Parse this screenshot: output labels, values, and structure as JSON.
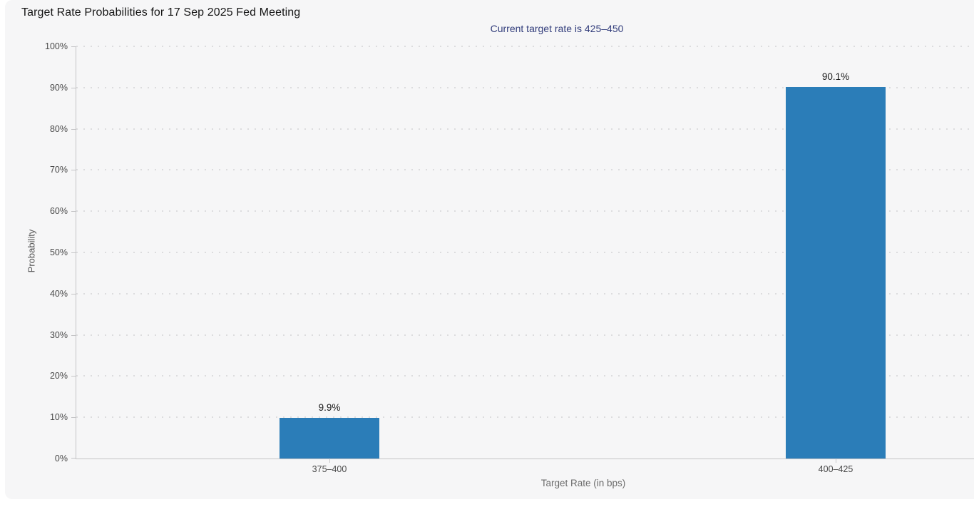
{
  "chart_data": {
    "type": "bar",
    "title": "Target Rate Probabilities for 17 Sep 2025 Fed Meeting",
    "subtitle": "Current target rate is 425–450",
    "categories": [
      "375–400",
      "400–425"
    ],
    "values": [
      9.9,
      90.1
    ],
    "data_labels": [
      "9.9%",
      "90.1%"
    ],
    "xlabel": "Target Rate (in bps)",
    "ylabel": "Probability",
    "ylim": [
      0,
      100
    ],
    "ytick_step": 10,
    "ytick_labels": [
      "0%",
      "10%",
      "20%",
      "30%",
      "40%",
      "50%",
      "60%",
      "70%",
      "80%",
      "90%",
      "100%"
    ],
    "grid": "horizontal-dotted",
    "legend": "none",
    "colors": {
      "bar": "#2b7db8",
      "subtitle_text": "#333e7c",
      "panel_background": "#f6f6f7",
      "axis_line": "#c4c4c6",
      "gridline": "#dcdcde"
    }
  }
}
